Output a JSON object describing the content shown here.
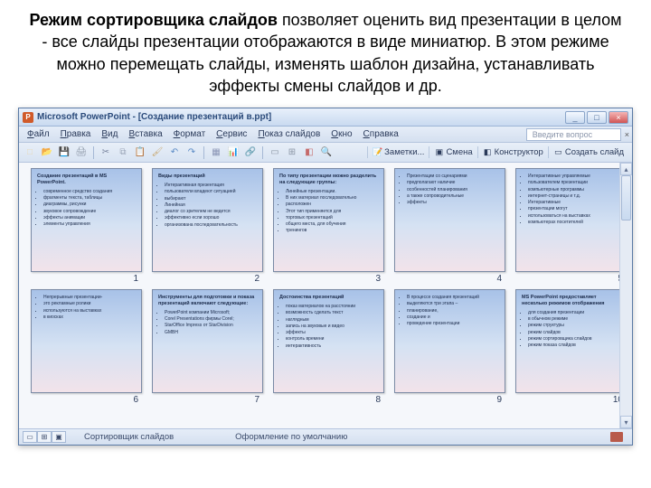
{
  "description": {
    "bold": "Режим сортировщика слайдов",
    "rest": " позволяет оценить вид презентации в целом -  все слайды презентации отображаются в виде миниатюр. В этом режиме можно перемещать слайды, изменять шаблон дизайна, устанавливать эффекты смены слайдов и др."
  },
  "window": {
    "app_name": "Microsoft PowerPoint",
    "doc_name": "[Создание презентаций в.ppt]",
    "min": "_",
    "max": "□",
    "close": "×"
  },
  "menu": {
    "items": [
      "Файл",
      "Правка",
      "Вид",
      "Вставка",
      "Формат",
      "Сервис",
      "Показ слайдов",
      "Окно",
      "Справка"
    ],
    "help_placeholder": "Введите вопрос",
    "menu_close": "×"
  },
  "toolbar": {
    "icons": [
      {
        "name": "new-icon",
        "color": "#e8d8b5",
        "glyph": "□"
      },
      {
        "name": "open-icon",
        "color": "#e8c86a",
        "glyph": "📂"
      },
      {
        "name": "save-icon",
        "color": "#5a7ac5",
        "glyph": "💾"
      },
      {
        "name": "print-icon",
        "color": "#8a95a5",
        "glyph": "🖨"
      },
      {
        "name": "sep"
      },
      {
        "name": "cut-icon",
        "color": "#7a85a0",
        "glyph": "✂"
      },
      {
        "name": "copy-icon",
        "color": "#9aa5b8",
        "glyph": "⧉"
      },
      {
        "name": "paste-icon",
        "color": "#c8a56a",
        "glyph": "📋"
      },
      {
        "name": "format-painter-icon",
        "color": "#c8a56a",
        "glyph": "🖌"
      },
      {
        "name": "undo-icon",
        "color": "#5a8ac5",
        "glyph": "↶"
      },
      {
        "name": "redo-icon",
        "color": "#5a8ac5",
        "glyph": "↷"
      },
      {
        "name": "sep"
      },
      {
        "name": "table-icon",
        "color": "#8a95b5",
        "glyph": "▦"
      },
      {
        "name": "chart-icon",
        "color": "#6a95c5",
        "glyph": "📊"
      },
      {
        "name": "hyperlink-icon",
        "color": "#5a7ac5",
        "glyph": "🔗"
      },
      {
        "name": "sep"
      },
      {
        "name": "expand-icon",
        "color": "#8a95a5",
        "glyph": "▭"
      },
      {
        "name": "grid-icon",
        "color": "#8a95a5",
        "glyph": "⊞"
      },
      {
        "name": "color-icon",
        "color": "#c56a6a",
        "glyph": "◧"
      },
      {
        "name": "zoom-icon",
        "color": "#8a95a5",
        "glyph": "🔍"
      }
    ],
    "right": [
      {
        "name": "notes-button",
        "icon": "📝",
        "label": "Заметки..."
      },
      {
        "name": "transition-button",
        "icon": "▣",
        "label": "Смена"
      },
      {
        "name": "design-button",
        "icon": "◧",
        "label": "Конструктор"
      },
      {
        "name": "new-slide-button",
        "icon": "▭",
        "label": "Создать слайд"
      }
    ]
  },
  "slides": [
    {
      "num": "1",
      "title": "Создание презентаций в MS PowerPoint.",
      "bullets": [
        "современное средство создания",
        "фрагменты текста, таблицы",
        "диаграммы, рисунки",
        "звуковое сопровождение",
        "эффекты анимации",
        "элементы управления"
      ]
    },
    {
      "num": "2",
      "title": "Виды презентаций",
      "bullets": [
        "Интерактивная презентация",
        "пользователи владеют ситуацией",
        "выбирают",
        "Линейная",
        "диалог со зрителем не ведется",
        "эффективно если хорошо",
        "организована последовательность"
      ]
    },
    {
      "num": "3",
      "title": "По типу презентации можно разделить на следующие группы:",
      "bullets": [
        "Линейные презентации.",
        "В них материал последовательно",
        "расположен",
        "Этот тип применяется для",
        "торговых презентаций",
        "общего места, для обучения",
        "тренингов"
      ]
    },
    {
      "num": "4",
      "title": "",
      "bullets": [
        "Презентации со сценариями",
        "предполагают наличие",
        "особенностей планирования",
        "а также сопроводительные",
        "эффекты"
      ]
    },
    {
      "num": "5",
      "title": "",
      "bullets": [
        "Интерактивные управляемые",
        "пользователем презентации",
        "компьютерные программы",
        "интернет-страницы и т.д.",
        "Интерактивные",
        "презентации могут",
        "использоваться на выставках",
        "компьютерах посетителей"
      ]
    },
    {
      "num": "6",
      "title": "",
      "bullets": [
        "Непрерывные презентации-",
        "это рекламные ролики",
        "используются на выставках",
        "в киосках"
      ]
    },
    {
      "num": "7",
      "title": "Инструменты для подготовки и показа презентаций включают следующие:",
      "bullets": [
        "PowerPoint компании Microsoft;",
        "Corel Presentations фирмы Corel;",
        "StarOffice Impress от StarDivision",
        "GMBH"
      ]
    },
    {
      "num": "8",
      "title": "Достоинства презентаций",
      "bullets": [
        "показ материалов на расстоянии",
        "возможность сделать текст",
        "наглядным",
        "запись на звуковые и видео",
        "эффекты",
        "контроль времени",
        "интерактивность"
      ]
    },
    {
      "num": "9",
      "title": "",
      "bullets": [
        "В процессе создания презентаций",
        "выделяются три этапа –",
        "планирование,",
        "создание и",
        "проведение презентации"
      ]
    },
    {
      "num": "10",
      "title": "MS PowerPoint предоставляет несколько режимов отображения",
      "bullets": [
        "для создания презентации",
        "в обычном режиме",
        "режим структуры",
        "режим слайдов",
        "режим сортировщика слайдов",
        "режим показа слайдов"
      ]
    }
  ],
  "status": {
    "view_normal": "▭",
    "view_sorter": "⊞",
    "view_show": "▣",
    "mode": "Сортировщик слайдов",
    "template": "Оформление по умолчанию"
  },
  "colors": {
    "slide_grad_top": "#a8c2e8",
    "slide_grad_mid": "#d5e2f3",
    "slide_grad_bottom": "#f2e3ea",
    "titlebar_top": "#e8f0fb",
    "titlebar_bottom": "#c9daf0"
  }
}
